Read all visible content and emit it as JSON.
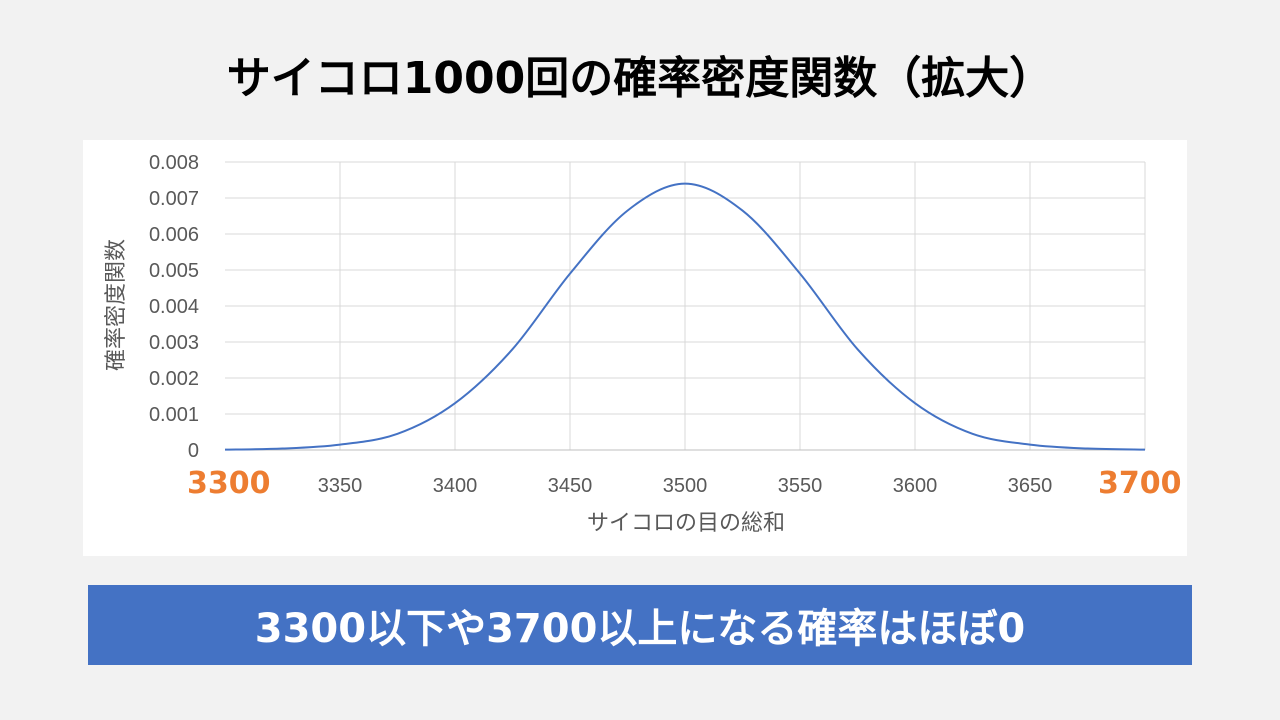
{
  "slide": {
    "title": "サイコロ1000回の確率密度関数（拡大）"
  },
  "chart_data": {
    "type": "line",
    "title": "",
    "xlabel": "サイコロの目の総和",
    "ylabel": "確率密度関数",
    "xlim": [
      3300,
      3700
    ],
    "ylim": [
      0,
      0.008
    ],
    "x_ticks": [
      "3300",
      "3350",
      "3400",
      "3450",
      "3500",
      "3550",
      "3600",
      "3650",
      "3700"
    ],
    "y_ticks": [
      "0",
      "0.001",
      "0.002",
      "0.003",
      "0.004",
      "0.005",
      "0.006",
      "0.007",
      "0.008"
    ],
    "grid": true,
    "line_color": "#4472c4",
    "series": [
      {
        "x": [
          3300,
          3325,
          3350,
          3375,
          3400,
          3425,
          3450,
          3475,
          3500,
          3525,
          3550,
          3575,
          3600,
          3625,
          3650,
          3675,
          3700
        ],
        "y": [
          1e-05,
          4e-05,
          0.00015,
          0.00045,
          0.0013,
          0.0028,
          0.0049,
          0.00665,
          0.0074,
          0.00665,
          0.0049,
          0.0028,
          0.0013,
          0.00045,
          0.00015,
          4e-05,
          1e-05
        ]
      }
    ]
  },
  "highlights": {
    "left_edge": "3300",
    "right_edge": "3700",
    "color": "#ed7d31"
  },
  "banner": {
    "text": "3300以下や3700以上になる確率はほぼ0",
    "color": "#4472c4"
  }
}
